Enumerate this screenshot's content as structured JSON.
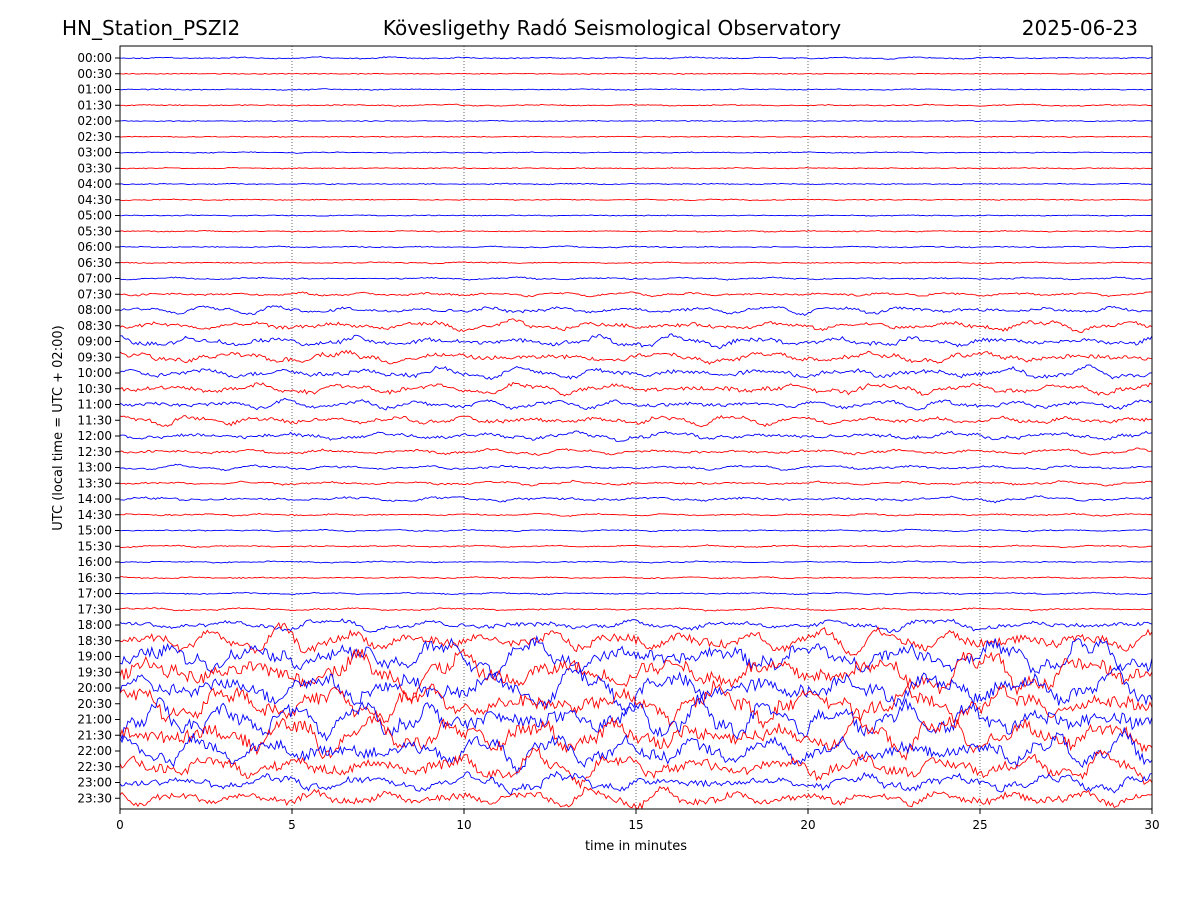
{
  "header": {
    "station": "HN_Station_PSZI2",
    "observatory": "Kövesligethy Radó Seismological Observatory",
    "date": "2025-06-23"
  },
  "chart_data": {
    "type": "line",
    "title": "Kövesligethy Radó Seismological Observatory",
    "xlabel": "time in minutes",
    "ylabel": "UTC (local time = UTC + 02:00)",
    "xlim": [
      0,
      30
    ],
    "x_ticks": [
      0,
      5,
      10,
      15,
      20,
      25,
      30
    ],
    "x_tick_labels": [
      "0",
      "5",
      "10",
      "15",
      "20",
      "25",
      "30"
    ],
    "vertical_gridlines_at": [
      5,
      10,
      15,
      20,
      25
    ],
    "trace_colors": [
      "#0000ff",
      "#ff0000"
    ],
    "row_labels": [
      "00:00",
      "00:30",
      "01:00",
      "01:30",
      "02:00",
      "02:30",
      "03:00",
      "03:30",
      "04:00",
      "04:30",
      "05:00",
      "05:30",
      "06:00",
      "06:30",
      "07:00",
      "07:30",
      "08:00",
      "08:30",
      "09:00",
      "09:30",
      "10:00",
      "10:30",
      "11:00",
      "11:30",
      "12:00",
      "12:30",
      "13:00",
      "13:30",
      "14:00",
      "14:30",
      "15:00",
      "15:30",
      "16:00",
      "16:30",
      "17:00",
      "17:30",
      "18:00",
      "18:30",
      "19:00",
      "19:30",
      "20:00",
      "20:30",
      "21:00",
      "21:30",
      "22:00",
      "22:30",
      "23:00",
      "23:30"
    ],
    "relative_activity_per_row": [
      0.2,
      0.05,
      0.1,
      0.15,
      0.05,
      0.04,
      0.08,
      0.08,
      0.08,
      0.1,
      0.06,
      0.1,
      0.15,
      0.12,
      0.25,
      0.45,
      0.8,
      1.0,
      1.2,
      1.2,
      1.2,
      1.2,
      1.0,
      1.0,
      0.9,
      0.6,
      0.5,
      0.4,
      0.5,
      0.25,
      0.2,
      0.2,
      0.15,
      0.15,
      0.2,
      0.3,
      1.2,
      2.5,
      3.5,
      4.0,
      4.0,
      4.0,
      4.0,
      4.0,
      3.5,
      3.0,
      2.0,
      2.0
    ]
  }
}
